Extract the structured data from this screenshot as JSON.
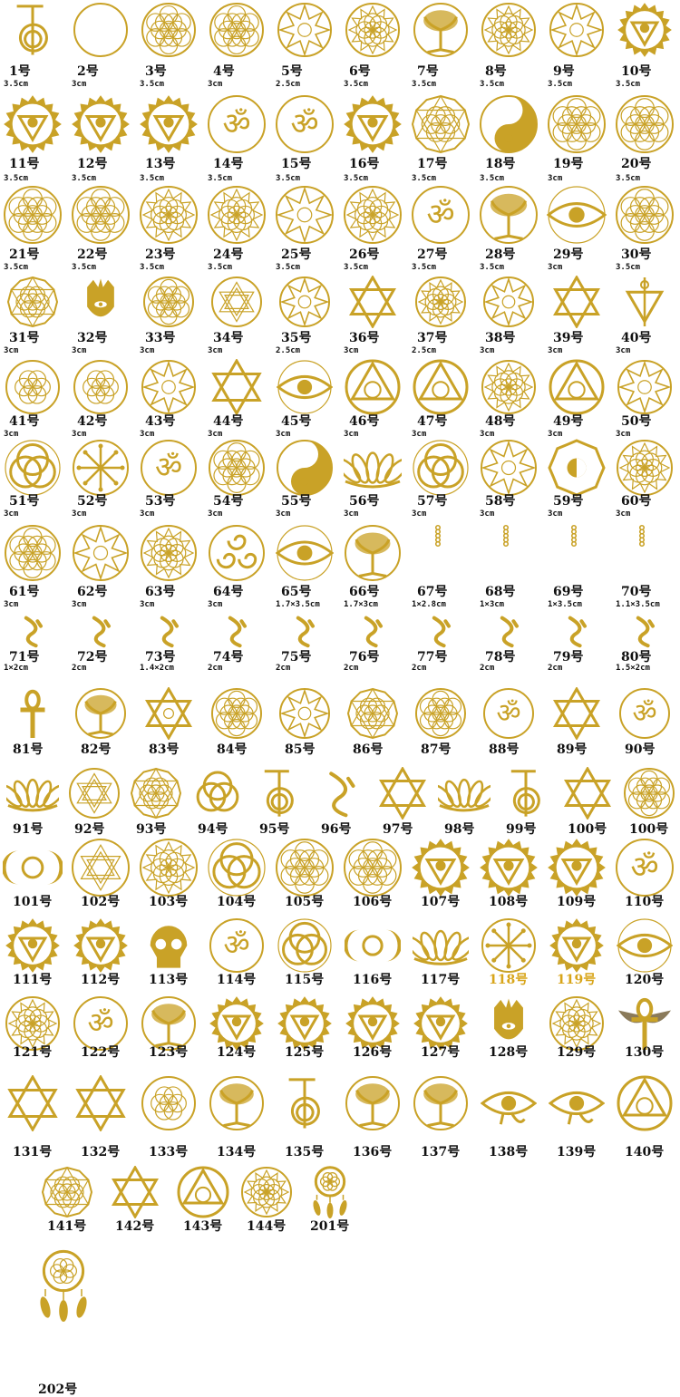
{
  "colors": {
    "gold": "#c9a227",
    "gold_dark": "#a9831a",
    "label": "#111111",
    "label_gold": "#d8a51a"
  },
  "items": [
    {
      "id": "1号",
      "size": "3.5cm",
      "icon": "reiki-spiral"
    },
    {
      "id": "2号",
      "size": "3cm",
      "icon": "hexagon-flower"
    },
    {
      "id": "3号",
      "size": "3.5cm",
      "icon": "flower-of-life"
    },
    {
      "id": "4号",
      "size": "3cm",
      "icon": "flower-of-life"
    },
    {
      "id": "5号",
      "size": "2.5cm",
      "icon": "star-circle"
    },
    {
      "id": "6号",
      "size": "3.5cm",
      "icon": "lotus-hexagon"
    },
    {
      "id": "7号",
      "size": "3.5cm",
      "icon": "tree-of-life"
    },
    {
      "id": "8号",
      "size": "3.5cm",
      "icon": "mandala"
    },
    {
      "id": "9号",
      "size": "3.5cm",
      "icon": "star-circle"
    },
    {
      "id": "10号",
      "size": "3.5cm",
      "icon": "chakra"
    },
    {
      "id": "11号",
      "size": "3.5cm",
      "icon": "chakra"
    },
    {
      "id": "12号",
      "size": "3.5cm",
      "icon": "chakra"
    },
    {
      "id": "13号",
      "size": "3.5cm",
      "icon": "chakra"
    },
    {
      "id": "14号",
      "size": "3.5cm",
      "icon": "om"
    },
    {
      "id": "15号",
      "size": "3.5cm",
      "icon": "om"
    },
    {
      "id": "16号",
      "size": "3.5cm",
      "icon": "chakra"
    },
    {
      "id": "17号",
      "size": "3.5cm",
      "icon": "metatron-cube"
    },
    {
      "id": "18号",
      "size": "3.5cm",
      "icon": "yin-yang"
    },
    {
      "id": "19号",
      "size": "3cm",
      "icon": "flower-of-life"
    },
    {
      "id": "20号",
      "size": "3.5cm",
      "icon": "flower-of-life"
    },
    {
      "id": "21号",
      "size": "3.5cm",
      "icon": "flower-of-life"
    },
    {
      "id": "22号",
      "size": "3.5cm",
      "icon": "flower-of-life"
    },
    {
      "id": "23号",
      "size": "3.5cm",
      "icon": "mandala"
    },
    {
      "id": "24号",
      "size": "3.5cm",
      "icon": "lotus-hexagon"
    },
    {
      "id": "25号",
      "size": "3.5cm",
      "icon": "star-circle"
    },
    {
      "id": "26号",
      "size": "3.5cm",
      "icon": "mandala"
    },
    {
      "id": "27号",
      "size": "3.5cm",
      "icon": "om"
    },
    {
      "id": "28号",
      "size": "3.5cm",
      "icon": "tree-of-life"
    },
    {
      "id": "29号",
      "size": "3cm",
      "icon": "eye"
    },
    {
      "id": "30号",
      "size": "3.5cm",
      "icon": "flower-of-life"
    },
    {
      "id": "31号",
      "size": "3cm",
      "icon": "metatron-cube"
    },
    {
      "id": "32号",
      "size": "3cm",
      "icon": "hamsa"
    },
    {
      "id": "33号",
      "size": "3cm",
      "icon": "flower-of-life"
    },
    {
      "id": "34号",
      "size": "3cm",
      "icon": "sri-yantra"
    },
    {
      "id": "35号",
      "size": "2.5cm",
      "icon": "star-circle"
    },
    {
      "id": "36号",
      "size": "3cm",
      "icon": "star-of-david"
    },
    {
      "id": "37号",
      "size": "2.5cm",
      "icon": "mandala"
    },
    {
      "id": "38号",
      "size": "3cm",
      "icon": "star-circle"
    },
    {
      "id": "39号",
      "size": "3cm",
      "icon": "star-of-david"
    },
    {
      "id": "40号",
      "size": "3cm",
      "icon": "alchemy"
    },
    {
      "id": "41号",
      "size": "3cm",
      "icon": "seed-of-life"
    },
    {
      "id": "42号",
      "size": "3cm",
      "icon": "seed-of-life"
    },
    {
      "id": "43号",
      "size": "3cm",
      "icon": "star-circle"
    },
    {
      "id": "44号",
      "size": "3cm",
      "icon": "star-of-david"
    },
    {
      "id": "45号",
      "size": "3cm",
      "icon": "eye"
    },
    {
      "id": "46号",
      "size": "3cm",
      "icon": "triangle-circle"
    },
    {
      "id": "47号",
      "size": "3cm",
      "icon": "triangle-circle"
    },
    {
      "id": "48号",
      "size": "3cm",
      "icon": "mandala"
    },
    {
      "id": "49号",
      "size": "3cm",
      "icon": "triangle-circle"
    },
    {
      "id": "50号",
      "size": "3cm",
      "icon": "star-circle"
    },
    {
      "id": "51号",
      "size": "3cm",
      "icon": "triquetra"
    },
    {
      "id": "52号",
      "size": "3cm",
      "icon": "vegvisir"
    },
    {
      "id": "53号",
      "size": "3cm",
      "icon": "om"
    },
    {
      "id": "54号",
      "size": "3cm",
      "icon": "flower-of-life"
    },
    {
      "id": "55号",
      "size": "3cm",
      "icon": "yin-yang"
    },
    {
      "id": "56号",
      "size": "3cm",
      "icon": "lotus"
    },
    {
      "id": "57号",
      "size": "3cm",
      "icon": "triquetra"
    },
    {
      "id": "58号",
      "size": "3cm",
      "icon": "star-circle"
    },
    {
      "id": "59号",
      "size": "3cm",
      "icon": "bagua"
    },
    {
      "id": "60号",
      "size": "3cm",
      "icon": "mandala"
    },
    {
      "id": "61号",
      "size": "3cm",
      "icon": "flower-of-life"
    },
    {
      "id": "62号",
      "size": "3cm",
      "icon": "star-circle"
    },
    {
      "id": "63号",
      "size": "3cm",
      "icon": "mandala"
    },
    {
      "id": "64号",
      "size": "3cm",
      "icon": "triskele"
    },
    {
      "id": "65号",
      "size": "1.7×3.5cm",
      "icon": "eye"
    },
    {
      "id": "66号",
      "size": "1.7×3cm",
      "icon": "tree-of-life"
    },
    {
      "id": "67号",
      "size": "1×2.8cm",
      "icon": "seed-column"
    },
    {
      "id": "68号",
      "size": "1×3cm",
      "icon": "seed-column"
    },
    {
      "id": "69号",
      "size": "1×3.5cm",
      "icon": "seed-column"
    },
    {
      "id": "70号",
      "size": "1.1×3.5cm",
      "icon": "seed-column"
    },
    {
      "id": "71号",
      "size": "1×2cm",
      "icon": "rune"
    },
    {
      "id": "72号",
      "size": "2cm",
      "icon": "rune"
    },
    {
      "id": "73号",
      "size": "1.4×2cm",
      "icon": "rune"
    },
    {
      "id": "74号",
      "size": "2cm",
      "icon": "rune"
    },
    {
      "id": "75号",
      "size": "2cm",
      "icon": "rune"
    },
    {
      "id": "76号",
      "size": "2cm",
      "icon": "rune"
    },
    {
      "id": "77号",
      "size": "2cm",
      "icon": "rune"
    },
    {
      "id": "78号",
      "size": "2cm",
      "icon": "rune"
    },
    {
      "id": "79号",
      "size": "2cm",
      "icon": "rune"
    },
    {
      "id": "80号",
      "size": "1.5×2cm",
      "icon": "rune"
    },
    {
      "id": "81号",
      "size": "",
      "icon": "ankh"
    },
    {
      "id": "82号",
      "size": "",
      "icon": "tree-of-life"
    },
    {
      "id": "83号",
      "size": "",
      "icon": "merkaba"
    },
    {
      "id": "84号",
      "size": "",
      "icon": "flower-of-life"
    },
    {
      "id": "85号",
      "size": "",
      "icon": "star-circle"
    },
    {
      "id": "86号",
      "size": "",
      "icon": "metatron-cube"
    },
    {
      "id": "87号",
      "size": "",
      "icon": "flower-of-life"
    },
    {
      "id": "88号",
      "size": "",
      "icon": "om"
    },
    {
      "id": "89号",
      "size": "",
      "icon": "star-of-david"
    },
    {
      "id": "90号",
      "size": "",
      "icon": "om"
    },
    {
      "id": "91号",
      "size": "",
      "icon": "lotus"
    },
    {
      "id": "92号",
      "size": "",
      "icon": "sri-yantra"
    },
    {
      "id": "93号",
      "size": "",
      "icon": "metatron-cube"
    },
    {
      "id": "94号",
      "size": "",
      "icon": "triangle-knot"
    },
    {
      "id": "95号",
      "size": "",
      "icon": "reiki-spiral"
    },
    {
      "id": "96号",
      "size": "",
      "icon": "rune"
    },
    {
      "id": "97号",
      "size": "",
      "icon": "star-of-david"
    },
    {
      "id": "98号",
      "size": "",
      "icon": "lotus"
    },
    {
      "id": "99号",
      "size": "",
      "icon": "reiki-spiral"
    },
    {
      "id": "100号",
      "size": "",
      "icon": "star-of-david"
    },
    {
      "id": "100号",
      "size": "",
      "icon": "flower-of-life"
    },
    {
      "id": "101号",
      "size": "",
      "icon": "moon-goddess"
    },
    {
      "id": "102号",
      "size": "",
      "icon": "sri-yantra"
    },
    {
      "id": "103号",
      "size": "",
      "icon": "mandala"
    },
    {
      "id": "104号",
      "size": "",
      "icon": "triquetra"
    },
    {
      "id": "105号",
      "size": "",
      "icon": "flower-of-life"
    },
    {
      "id": "106号",
      "size": "",
      "icon": "flower-of-life"
    },
    {
      "id": "107号",
      "size": "",
      "icon": "chakra"
    },
    {
      "id": "108号",
      "size": "",
      "icon": "chakra"
    },
    {
      "id": "109号",
      "size": "",
      "icon": "chakra"
    },
    {
      "id": "110号",
      "size": "",
      "icon": "om"
    },
    {
      "id": "111号",
      "size": "",
      "icon": "chakra"
    },
    {
      "id": "112号",
      "size": "",
      "icon": "chakra"
    },
    {
      "id": "113号",
      "size": "",
      "icon": "skull"
    },
    {
      "id": "114号",
      "size": "",
      "icon": "om"
    },
    {
      "id": "115号",
      "size": "",
      "icon": "triquetra"
    },
    {
      "id": "116号",
      "size": "",
      "icon": "triple-moon"
    },
    {
      "id": "117号",
      "size": "",
      "icon": "lotus"
    },
    {
      "id": "118号",
      "size": "",
      "icon": "vegvisir",
      "gold": true
    },
    {
      "id": "119号",
      "size": "",
      "icon": "chakra",
      "gold": true
    },
    {
      "id": "120号",
      "size": "",
      "icon": "eye"
    },
    {
      "id": "121号",
      "size": "",
      "icon": "mandala"
    },
    {
      "id": "122号",
      "size": "",
      "icon": "om"
    },
    {
      "id": "123号",
      "size": "",
      "icon": "tree-of-life"
    },
    {
      "id": "124号",
      "size": "",
      "icon": "chakra"
    },
    {
      "id": "125号",
      "size": "",
      "icon": "chakra"
    },
    {
      "id": "126号",
      "size": "",
      "icon": "chakra"
    },
    {
      "id": "127号",
      "size": "",
      "icon": "chakra"
    },
    {
      "id": "128号",
      "size": "",
      "icon": "hamsa"
    },
    {
      "id": "129号",
      "size": "",
      "icon": "mandala"
    },
    {
      "id": "130号",
      "size": "",
      "icon": "winged-ankh"
    },
    {
      "id": "131号",
      "size": "",
      "icon": "star-of-david"
    },
    {
      "id": "132号",
      "size": "",
      "icon": "star-of-david"
    },
    {
      "id": "133号",
      "size": "",
      "icon": "seed-of-life"
    },
    {
      "id": "134号",
      "size": "",
      "icon": "tree-of-life"
    },
    {
      "id": "135号",
      "size": "",
      "icon": "reiki-spiral"
    },
    {
      "id": "136号",
      "size": "",
      "icon": "tree-of-life"
    },
    {
      "id": "137号",
      "size": "",
      "icon": "tree-of-life"
    },
    {
      "id": "138号",
      "size": "",
      "icon": "eye-of-horus"
    },
    {
      "id": "139号",
      "size": "",
      "icon": "eye-of-horus"
    },
    {
      "id": "140号",
      "size": "",
      "icon": "triangle-circle"
    },
    {
      "id": "141号",
      "size": "",
      "icon": "metatron-cube"
    },
    {
      "id": "142号",
      "size": "",
      "icon": "star-of-david"
    },
    {
      "id": "143号",
      "size": "",
      "icon": "triangle-circle"
    },
    {
      "id": "144号",
      "size": "",
      "icon": "mandala"
    },
    {
      "id": "201号",
      "size": "",
      "icon": "dreamcatcher"
    },
    {
      "id": "202号",
      "size": "",
      "icon": "dreamcatcher"
    }
  ]
}
